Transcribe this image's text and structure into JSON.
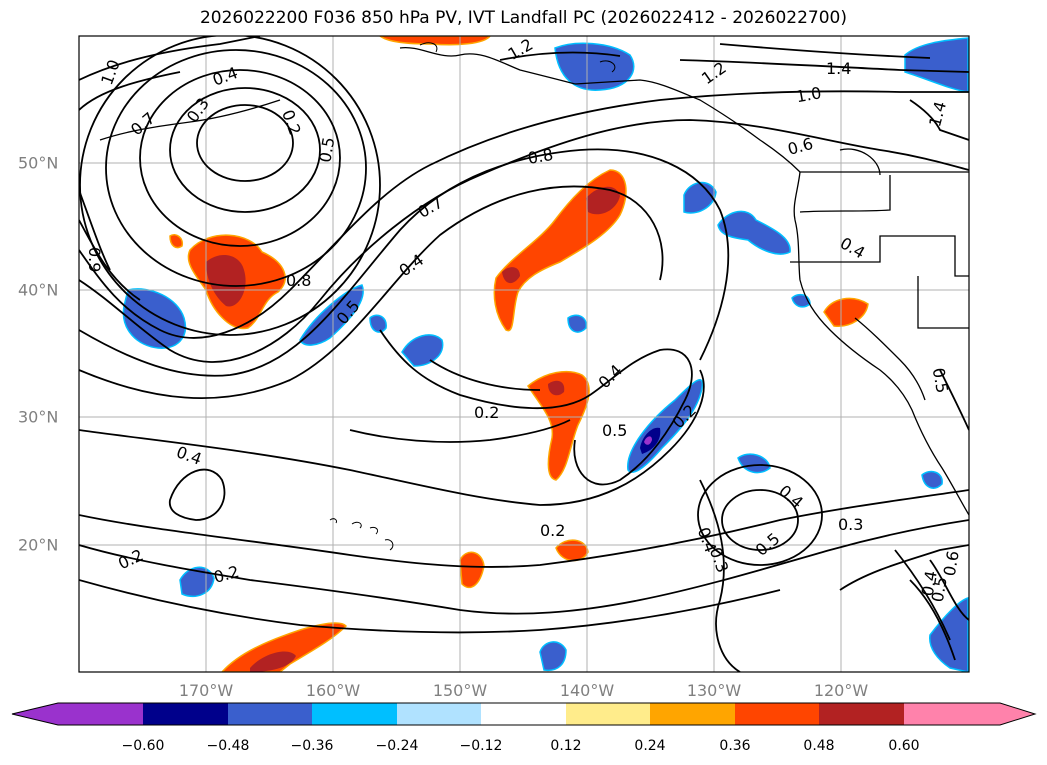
{
  "title": "2026022200 F036 850 hPa PV, IVT Landfall PC (2026022412 - 2026022700)",
  "map": {
    "lon_labels": [
      "170°W",
      "160°W",
      "150°W",
      "140°W",
      "130°W",
      "120°W"
    ],
    "lat_labels": [
      "50°N",
      "40°N",
      "30°N",
      "20°N"
    ],
    "contour_labels": [
      "1.0",
      "0.4",
      "0.3",
      "0.7",
      "0.2",
      "0.5",
      "1.2",
      "1.2",
      "1.4",
      "1.0",
      "1.4",
      "0.6",
      "0.8",
      "0.7",
      "0.9",
      "0.4",
      "0.8",
      "0.5",
      "0.4",
      "0.4",
      "0.2",
      "0.4",
      "0.5",
      "0.2",
      "0.4",
      "0.2",
      "0.2",
      "0.2",
      "0.3",
      "0.4",
      "0.5",
      "0.3",
      "0.5",
      "0.6",
      "0.4",
      "0.5"
    ],
    "colors": {
      "grid": "#b0b0b0",
      "contour": "#000000",
      "coast": "#000000"
    }
  },
  "colorbar": {
    "ticks": [
      "−0.60",
      "−0.48",
      "−0.36",
      "−0.24",
      "−0.12",
      "0.12",
      "0.24",
      "0.36",
      "0.48",
      "0.60"
    ],
    "colors": [
      "#9a32cd",
      "#00008b",
      "#3a5fcd",
      "#00bfff",
      "#b0e2ff",
      "#ffffff",
      "#ffec8b",
      "#ffa500",
      "#ff4500",
      "#b22222",
      "#ff82ab"
    ]
  }
}
